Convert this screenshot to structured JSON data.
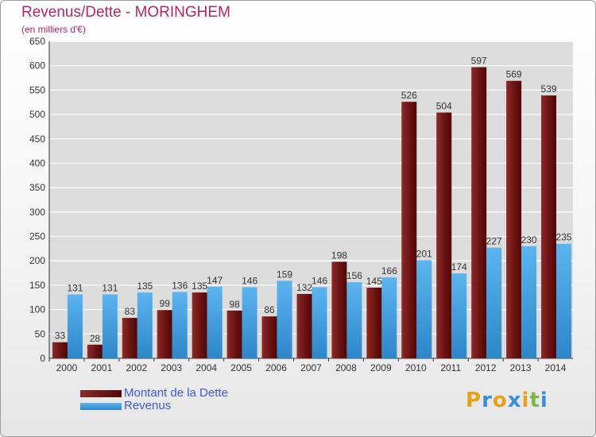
{
  "chart_data": {
    "type": "bar",
    "title": "Revenus/Dette - MORINGHEM",
    "subtitle": "(en milliers d'€)",
    "categories": [
      "2000",
      "2001",
      "2002",
      "2003",
      "2004",
      "2005",
      "2006",
      "2007",
      "2008",
      "2009",
      "2010",
      "2011",
      "2012",
      "2013",
      "2014"
    ],
    "series": [
      {
        "name": "Montant de la Dette",
        "color": "#7a1a1a",
        "values": [
          33,
          28,
          83,
          99,
          135,
          98,
          86,
          132,
          198,
          145,
          526,
          504,
          597,
          569,
          539
        ]
      },
      {
        "name": "Revenus",
        "color": "#4aa3e0",
        "values": [
          131,
          131,
          135,
          136,
          147,
          146,
          159,
          146,
          156,
          166,
          201,
          174,
          227,
          230,
          235
        ]
      }
    ],
    "ylim": [
      0,
      650
    ],
    "yticks": [
      0,
      50,
      100,
      150,
      200,
      250,
      300,
      350,
      400,
      450,
      500,
      550,
      600,
      650
    ],
    "grid": true,
    "legend_position": "bottom-left"
  },
  "brand": {
    "text": "Proxiti",
    "letters": [
      "P",
      "r",
      "o",
      "x",
      "i",
      "t",
      "i"
    ],
    "colors": [
      "#e3a21a",
      "#3a8fd8",
      "#e3a21a",
      "#3a8fd8",
      "#e3a21a",
      "#7ab648",
      "#3a8fd8"
    ]
  }
}
